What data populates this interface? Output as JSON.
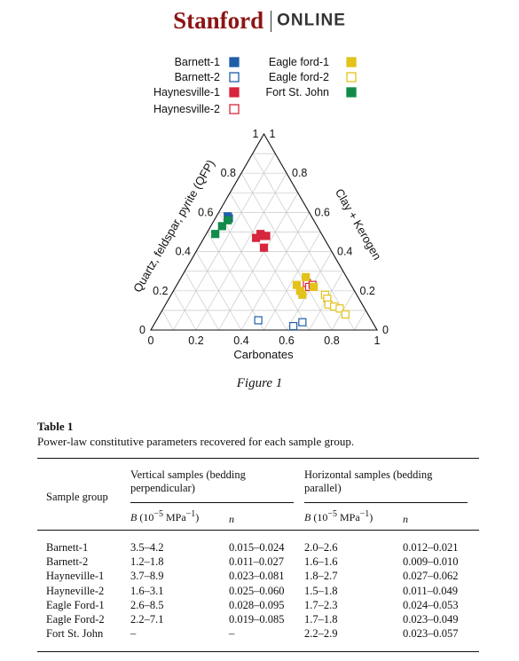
{
  "logo": {
    "brand": "Stanford",
    "suffix": "ONLINE"
  },
  "figure": {
    "caption": "Figure 1",
    "legend": [
      {
        "label": "Barnett-1",
        "color": "#1f5fa8",
        "filled": true
      },
      {
        "label": "Barnett-2",
        "color": "#1f5fa8",
        "filled": false
      },
      {
        "label": "Haynesville-1",
        "color": "#d7263d",
        "filled": true
      },
      {
        "label": "Haynesville-2",
        "color": "#d7263d",
        "filled": false
      },
      {
        "label": "Eagle ford-1",
        "color": "#e3c21b",
        "filled": true
      },
      {
        "label": "Eagle ford-2",
        "color": "#e3c21b",
        "filled": false
      },
      {
        "label": "Fort St. John",
        "color": "#138a4a",
        "filled": true
      }
    ]
  },
  "chart_data": {
    "type": "scatter",
    "subtype": "ternary",
    "axes": {
      "bottom": {
        "title": "Carbonates",
        "ticks": [
          "0",
          "0.2",
          "0.4",
          "0.6",
          "0.8",
          "1"
        ]
      },
      "left": {
        "title": "Quartz, feldspar, pyrite (QFP)",
        "ticks": [
          "1",
          "0.8",
          "0.6",
          "0.4",
          "0.2",
          "0"
        ]
      },
      "right": {
        "title": "Clay + Kerogen",
        "ticks": [
          "1",
          "0.8",
          "0.6",
          "0.4",
          "0.2",
          "0"
        ]
      }
    },
    "grid": true,
    "series": [
      {
        "name": "Barnett-1",
        "color": "#1f5fa8",
        "filled": true,
        "points": [
          {
            "carbonates": 0.05,
            "qfp": 0.58
          },
          {
            "carbonates": 0.06,
            "qfp": 0.57
          }
        ]
      },
      {
        "name": "Barnett-2",
        "color": "#1f5fa8",
        "filled": false,
        "points": [
          {
            "carbonates": 0.45,
            "qfp": 0.05
          },
          {
            "carbonates": 0.65,
            "qfp": 0.04
          },
          {
            "carbonates": 0.62,
            "qfp": 0.02
          }
        ]
      },
      {
        "name": "Haynesville-1",
        "color": "#d7263d",
        "filled": true,
        "points": [
          {
            "carbonates": 0.24,
            "qfp": 0.49
          },
          {
            "carbonates": 0.25,
            "qfp": 0.48
          },
          {
            "carbonates": 0.23,
            "qfp": 0.47
          },
          {
            "carbonates": 0.27,
            "qfp": 0.48
          },
          {
            "carbonates": 0.29,
            "qfp": 0.42
          }
        ]
      },
      {
        "name": "Haynesville-2",
        "color": "#d7263d",
        "filled": false,
        "points": [
          {
            "carbonates": 0.57,
            "qfp": 0.24
          },
          {
            "carbonates": 0.59,
            "qfp": 0.22
          },
          {
            "carbonates": 0.6,
            "qfp": 0.23
          }
        ]
      },
      {
        "name": "Eagle ford-1",
        "color": "#e3c21b",
        "filled": true,
        "points": [
          {
            "carbonates": 0.55,
            "qfp": 0.27
          },
          {
            "carbonates": 0.53,
            "qfp": 0.23
          },
          {
            "carbonates": 0.56,
            "qfp": 0.2
          },
          {
            "carbonates": 0.58,
            "qfp": 0.18
          },
          {
            "carbonates": 0.61,
            "qfp": 0.22
          }
        ]
      },
      {
        "name": "Eagle ford-2",
        "color": "#e3c21b",
        "filled": false,
        "points": [
          {
            "carbonates": 0.68,
            "qfp": 0.18
          },
          {
            "carbonates": 0.7,
            "qfp": 0.16
          },
          {
            "carbonates": 0.72,
            "qfp": 0.13
          },
          {
            "carbonates": 0.75,
            "qfp": 0.12
          },
          {
            "carbonates": 0.78,
            "qfp": 0.11
          },
          {
            "carbonates": 0.82,
            "qfp": 0.08
          }
        ]
      },
      {
        "name": "Fort St. John",
        "color": "#138a4a",
        "filled": true,
        "points": [
          {
            "carbonates": 0.06,
            "qfp": 0.56
          },
          {
            "carbonates": 0.05,
            "qfp": 0.53
          },
          {
            "carbonates": 0.04,
            "qfp": 0.49
          }
        ]
      }
    ]
  },
  "table": {
    "title": "Table 1",
    "caption": "Power-law constitutive parameters recovered for each sample group.",
    "row_header": "Sample group",
    "vertical_group": {
      "line1": "Vertical samples (bedding",
      "line2": "perpendicular)"
    },
    "horizontal_group": {
      "line1": "Horizontal samples (bedding",
      "line2": "parallel)"
    },
    "b_label": "B",
    "b_unit": "(10",
    "b_exp": "−5",
    "b_unit2": " MPa",
    "b_exp2": "−1",
    "b_close": ")",
    "n_label": "n",
    "rows": [
      {
        "group": "Barnett-1",
        "vB": "3.5–4.2",
        "vn": "0.015–0.024",
        "hB": "2.0–2.6",
        "hn": "0.012–0.021"
      },
      {
        "group": "Barnett-2",
        "vB": "1.2–1.8",
        "vn": "0.011–0.027",
        "hB": "1.6–1.6",
        "hn": "0.009–0.010"
      },
      {
        "group": "Hayneville-1",
        "vB": "3.7–8.9",
        "vn": "0.023–0.081",
        "hB": "1.8–2.7",
        "hn": "0.027–0.062"
      },
      {
        "group": "Hayneville-2",
        "vB": "1.6–3.1",
        "vn": "0.025–0.060",
        "hB": "1.5–1.8",
        "hn": "0.011–0.049"
      },
      {
        "group": "Eagle Ford-1",
        "vB": "2.6–8.5",
        "vn": "0.028–0.095",
        "hB": "1.7–2.3",
        "hn": "0.024–0.053"
      },
      {
        "group": "Eagle Ford-2",
        "vB": "2.2–7.1",
        "vn": "0.019–0.085",
        "hB": "1.7–1.8",
        "hn": "0.023–0.049"
      },
      {
        "group": "Fort St. John",
        "vB": "–",
        "vn": "–",
        "hB": "2.2–2.9",
        "hn": "0.023–0.057"
      }
    ]
  }
}
